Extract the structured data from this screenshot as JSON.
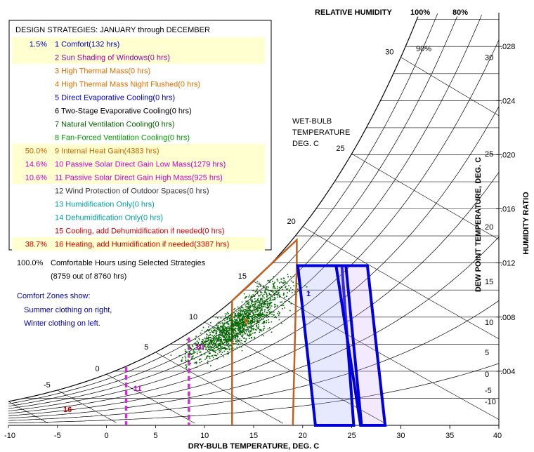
{
  "chart_data": {
    "type": "scatter",
    "xlabel": "DRY-BULB TEMPERATURE, DEG. C",
    "ylabel_right": "HUMIDITY RATIO",
    "ylabel_dewpoint": "DEW POINT TEMPERATURE, DEG. C",
    "rh_title": "RELATIVE HUMIDITY",
    "rh_top_labels": [
      "100%",
      "80%"
    ],
    "rh_inner_label": "90%",
    "wetbulb_title": [
      "WET-BULB",
      "TEMPERATURE",
      "DEG. C"
    ],
    "x_ticks": [
      -10,
      -5,
      0,
      5,
      10,
      15,
      20,
      25,
      30,
      35,
      40
    ],
    "xlim": [
      -10,
      40
    ],
    "hr_ticks": [
      {
        "value": 0.004,
        "label": ".004"
      },
      {
        "value": 0.008,
        "label": ".008"
      },
      {
        "value": 0.012,
        "label": ".012"
      },
      {
        "value": 0.016,
        "label": ".016"
      },
      {
        "value": 0.02,
        "label": ".020"
      },
      {
        "value": 0.024,
        "label": ".024"
      },
      {
        "value": 0.028,
        "label": ".028"
      }
    ],
    "hr_lim": [
      0,
      0.0305
    ],
    "dewpoint_labels": [
      "30",
      "25",
      "20",
      "15",
      "10",
      "5",
      "0",
      "-5",
      "-10"
    ],
    "wetbulb_labels": [
      "-5",
      "0",
      "5",
      "10",
      "15",
      "20",
      "25",
      "30"
    ],
    "legend_title": "DESIGN STRATEGIES:  JANUARY through DECEMBER",
    "strategies": [
      {
        "pct": "1.5%",
        "label": "1  Comfort(132 hrs)",
        "color": "#0000cc",
        "highlight": true
      },
      {
        "pct": "",
        "label": "2  Sun Shading of Windows(0 hrs)",
        "color": "#a000a0",
        "highlight": true
      },
      {
        "pct": "",
        "label": "3  High Thermal Mass(0 hrs)",
        "color": "#e07000",
        "highlight": false
      },
      {
        "pct": "",
        "label": "4  High Thermal Mass Night Flushed(0 hrs)",
        "color": "#e07000",
        "highlight": false
      },
      {
        "pct": "",
        "label": "5  Direct Evaporative Cooling(0 hrs)",
        "color": "#0000cc",
        "highlight": false
      },
      {
        "pct": "",
        "label": "6  Two-Stage Evaporative Cooling(0 hrs)",
        "color": "#000000",
        "highlight": false
      },
      {
        "pct": "",
        "label": "7  Natural Ventilation Cooling(0 hrs)",
        "color": "#006600",
        "highlight": false
      },
      {
        "pct": "",
        "label": "8  Fan-Forced Ventilation Cooling(0 hrs)",
        "color": "#009900",
        "highlight": false
      },
      {
        "pct": "50.0%",
        "label": "9  Internal Heat Gain(4383 hrs)",
        "color": "#cc6600",
        "highlight": true
      },
      {
        "pct": "14.6%",
        "label": "10  Passive Solar Direct Gain Low Mass(1279 hrs)",
        "color": "#cc00cc",
        "highlight": true
      },
      {
        "pct": "10.6%",
        "label": "11  Passive Solar Direct Gain High Mass(925 hrs)",
        "color": "#cc00cc",
        "highlight": true
      },
      {
        "pct": "",
        "label": "12  Wind Protection of Outdoor Spaces(0 hrs)",
        "color": "#333333",
        "highlight": false
      },
      {
        "pct": "",
        "label": "13  Humidification Only(0 hrs)",
        "color": "#00a0a0",
        "highlight": false
      },
      {
        "pct": "",
        "label": "14  Dehumidification Only(0 hrs)",
        "color": "#00a0a0",
        "highlight": false
      },
      {
        "pct": "",
        "label": "15  Cooling, add Dehumidification if needed(0 hrs)",
        "color": "#cc0000",
        "highlight": false
      },
      {
        "pct": "38.7%",
        "label": "16  Heating, add Humidification if needed(3387 hrs)",
        "color": "#cc0000",
        "highlight": true
      }
    ],
    "summary_pct": "100.0%",
    "summary_text": "Comfortable Hours using Selected Strategies",
    "summary_sub": "(8759 out of 8760 hrs)",
    "comfort_note": [
      "Comfort Zones show:",
      "Summer clothing on right,",
      "Winter clothing on left."
    ],
    "zone_labels": [
      {
        "text": "1",
        "color": "#0000cc"
      },
      {
        "text": "9",
        "color": "#e07000"
      },
      {
        "text": "10",
        "color": "#cc00cc"
      },
      {
        "text": "11",
        "color": "#cc00cc"
      },
      {
        "text": "16",
        "color": "#cc0000"
      }
    ],
    "data_points_note": "Hourly climate data, dry-bulb approx. 4 to 24 C, humidity ratio approx. 0.004 to 0.011",
    "colors": {
      "points": "#006600",
      "comfort": "#0000dd",
      "internal_gain": "#c06020",
      "passive_solar": "#cc33cc",
      "heating": "#cc0000"
    }
  }
}
